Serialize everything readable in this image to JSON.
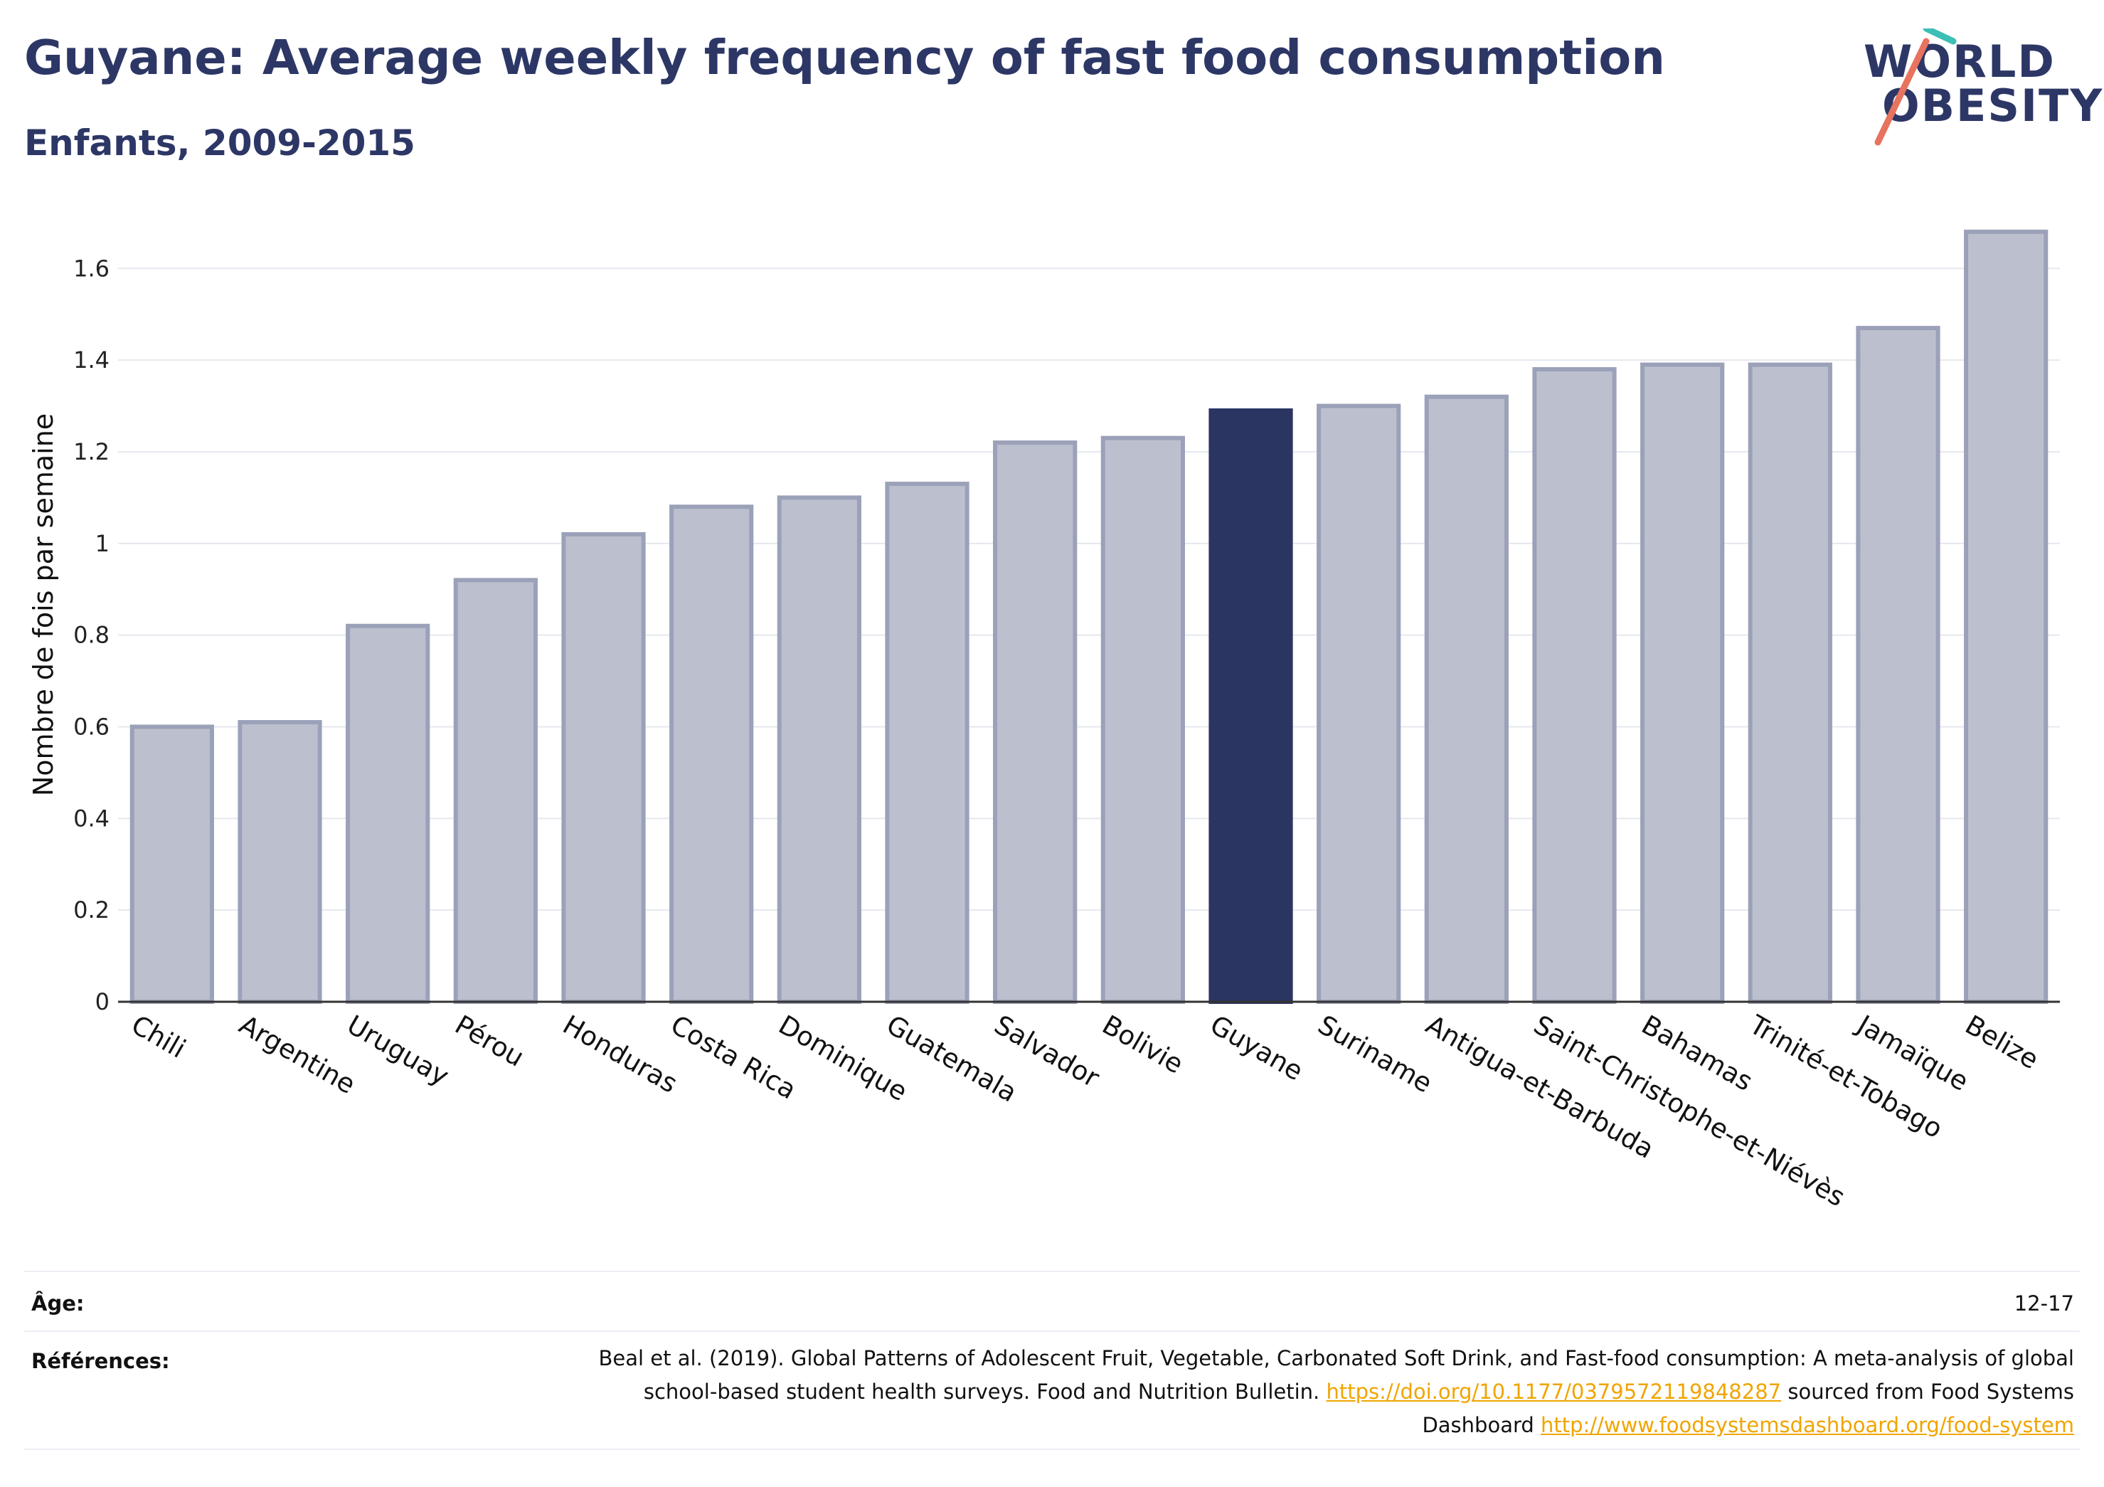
{
  "header": {
    "title": "Guyane: Average weekly frequency of fast food consumption",
    "subtitle": "Enfants, 2009-2015"
  },
  "logo": {
    "line1": "WORLD",
    "line2": "OBESITY"
  },
  "chart_data": {
    "type": "bar",
    "ylabel": "Nombre de fois par semaine",
    "xlabel": "",
    "ylim": [
      0,
      1.72
    ],
    "yticks": [
      0,
      0.2,
      0.4,
      0.6,
      0.8,
      1,
      1.2,
      1.4,
      1.6
    ],
    "ytick_labels": [
      "0",
      "0.2",
      "0.4",
      "0.6",
      "0.8",
      "1",
      "1.2",
      "1.4",
      "1.6"
    ],
    "grid": true,
    "highlight": "Guyane",
    "colors": {
      "bar": "#bcc0ce",
      "bar_edge": "#9ba1b8",
      "highlight": "#2b3562",
      "grid": "#e6e8ef",
      "axis": "#333333"
    },
    "categories": [
      "Chili",
      "Argentine",
      "Uruguay",
      "Pérou",
      "Honduras",
      "Costa Rica",
      "Dominique",
      "Guatemala",
      "Salvador",
      "Bolivie",
      "Guyane",
      "Suriname",
      "Antigua-et-Barbuda",
      "Saint-Christophe-et-Niévès",
      "Bahamas",
      "Trinité-et-Tobago",
      "Jamaïque",
      "Belize"
    ],
    "values": [
      0.6,
      0.61,
      0.82,
      0.92,
      1.02,
      1.08,
      1.1,
      1.13,
      1.22,
      1.23,
      1.29,
      1.3,
      1.32,
      1.38,
      1.39,
      1.39,
      1.47,
      1.68
    ]
  },
  "footer": {
    "age_label": "Âge:",
    "age_value": "12-17",
    "refs_label": "Références:",
    "refs_text1": "Beal et al. (2019). Global Patterns of Adolescent Fruit, Vegetable, Carbonated Soft Drink, and Fast-food consumption: A meta-analysis of global school-based student health surveys. Food and Nutrition Bulletin. ",
    "refs_link1": "https://doi.org/10.1177/0379572119848287",
    "refs_text2": " sourced from Food Systems Dashboard ",
    "refs_link2": "http://www.foodsystemsdashboard.org/food-system"
  }
}
